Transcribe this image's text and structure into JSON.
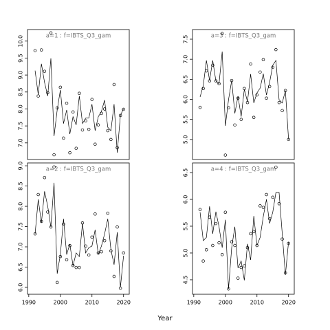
{
  "x_label": "Year",
  "chart_data": [
    {
      "type": "line",
      "title": "a=1  :  f=IBTS_Q3_gam",
      "x": [
        1992,
        1993,
        1994,
        1995,
        1996,
        1997,
        1998,
        1999,
        2000,
        2001,
        2002,
        2003,
        2004,
        2005,
        2006,
        2007,
        2008,
        2009,
        2010,
        2011,
        2012,
        2013,
        2014,
        2015,
        2016,
        2017,
        2018,
        2019,
        2020
      ],
      "series": [
        {
          "marker": "circle",
          "color": "#000000",
          "values": [
            9.72,
            8.38,
            9.74,
            9.11,
            8.48,
            10.24,
            6.65,
            8.03,
            8.64,
            7.14,
            8.17,
            6.71,
            7.91,
            6.84,
            8.46,
            7.38,
            7.65,
            7.4,
            8.28,
            6.96,
            7.53,
            7.87,
            8.0,
            7.36,
            7.1,
            8.72,
            6.86,
            7.81,
            7.99
          ]
        },
        {
          "marker": "none",
          "color": "#000000",
          "values": [
            9.13,
            8.42,
            9.33,
            8.78,
            8.38,
            9.49,
            7.2,
            7.97,
            8.56,
            7.57,
            7.97,
            7.26,
            7.77,
            7.53,
            8.38,
            7.57,
            7.73,
            7.73,
            8.14,
            7.36,
            7.77,
            7.93,
            8.26,
            7.46,
            7.36,
            8.14,
            6.71,
            7.81,
            8.01
          ]
        }
      ],
      "xlim": [
        1989.6,
        2021.8
      ],
      "ylim": [
        6.51,
        10.34
      ],
      "yticks": [
        {
          "value": 7,
          "label": "7.0"
        },
        {
          "value": 7.5,
          "label": "7.5"
        },
        {
          "value": 8,
          "label": "8.0"
        },
        {
          "value": 8.5,
          "label": "8.5"
        },
        {
          "value": 9,
          "label": "9.0"
        },
        {
          "value": 9.5,
          "label": "9.5"
        },
        {
          "value": 10,
          "label": "10.0"
        }
      ]
    },
    {
      "type": "line",
      "title": "a=3  :  f=IBTS_Q3_gam",
      "x": [
        1992,
        1993,
        1994,
        1995,
        1996,
        1997,
        1998,
        1999,
        2000,
        2001,
        2002,
        2003,
        2004,
        2005,
        2006,
        2007,
        2008,
        2009,
        2010,
        2011,
        2012,
        2013,
        2014,
        2015,
        2016,
        2017,
        2018,
        2019,
        2020
      ],
      "series": [
        {
          "marker": "circle",
          "color": "#000000",
          "values": [
            5.8,
            6.27,
            6.71,
            6.46,
            6.85,
            6.46,
            6.39,
            7.64,
            4.61,
            5.79,
            6.47,
            5.36,
            6.03,
            5.5,
            6.27,
            5.92,
            6.88,
            5.55,
            6.11,
            6.68,
            6.99,
            6.03,
            6.32,
            6.8,
            7.24,
            5.92,
            5.72,
            6.22,
            5.0
          ]
        },
        {
          "marker": "none",
          "color": "#000000",
          "values": [
            6.06,
            6.34,
            6.97,
            6.47,
            6.97,
            6.46,
            6.39,
            7.19,
            5.34,
            5.99,
            6.47,
            5.65,
            6.08,
            5.57,
            6.25,
            5.94,
            6.63,
            5.91,
            6.16,
            6.28,
            6.64,
            6.11,
            6.42,
            6.85,
            6.97,
            5.99,
            5.91,
            6.22,
            5.0
          ]
        }
      ],
      "xlim": [
        1989.6,
        2021.8
      ],
      "ylim": [
        4.5,
        7.74
      ],
      "yticks": [
        {
          "value": 5,
          "label": "5.0"
        },
        {
          "value": 5.5,
          "label": "5.5"
        },
        {
          "value": 6,
          "label": "6.0"
        },
        {
          "value": 6.5,
          "label": "6.5"
        },
        {
          "value": 7,
          "label": "7.0"
        },
        {
          "value": 7.5,
          "label": "7.5"
        }
      ]
    },
    {
      "type": "line",
      "title": "a=2  :  f=IBTS_Q3_gam",
      "x": [
        1992,
        1993,
        1994,
        1995,
        1996,
        1997,
        1998,
        1999,
        2000,
        2001,
        2002,
        2003,
        2004,
        2005,
        2006,
        2007,
        2008,
        2009,
        2010,
        2011,
        2012,
        2013,
        2014,
        2015,
        2016,
        2017,
        2018,
        2019,
        2020
      ],
      "series": [
        {
          "marker": "circle",
          "color": "#000000",
          "values": [
            7.32,
            8.29,
            7.63,
            8.71,
            7.86,
            7.49,
            8.97,
            6.12,
            6.76,
            7.56,
            6.68,
            7.03,
            6.54,
            6.49,
            6.49,
            7.59,
            7.02,
            6.8,
            7.24,
            7.81,
            6.85,
            6.88,
            7.15,
            7.83,
            6.9,
            6.27,
            7.49,
            5.98,
            6.85
          ]
        },
        {
          "marker": "none",
          "color": "#000000",
          "values": [
            7.32,
            8.17,
            7.59,
            8.37,
            8.0,
            7.49,
            8.58,
            6.34,
            6.81,
            7.69,
            6.81,
            7.07,
            6.53,
            6.85,
            6.76,
            7.58,
            6.85,
            6.98,
            7.02,
            7.42,
            6.81,
            7.02,
            7.32,
            7.69,
            6.93,
            6.56,
            7.36,
            6.0,
            6.78
          ]
        }
      ],
      "xlim": [
        1989.6,
        2021.8
      ],
      "ylim": [
        5.83,
        9.07
      ],
      "xticks": [
        1990,
        2000,
        2010,
        2020
      ],
      "yticks": [
        {
          "value": 6,
          "label": "6.0"
        },
        {
          "value": 6.5,
          "label": "6.5"
        },
        {
          "value": 7,
          "label": "7.0"
        },
        {
          "value": 7.5,
          "label": "7.5"
        },
        {
          "value": 8,
          "label": "8.0"
        },
        {
          "value": 8.5,
          "label": "8.5"
        },
        {
          "value": 9,
          "label": "9.0"
        }
      ]
    },
    {
      "type": "line",
      "title": "a=4  :  f=IBTS_Q3_gam",
      "x": [
        1992,
        1993,
        1994,
        1995,
        1996,
        1997,
        1998,
        1999,
        2000,
        2001,
        2002,
        2003,
        2004,
        2005,
        2006,
        2007,
        2008,
        2009,
        2010,
        2011,
        2012,
        2013,
        2014,
        2015,
        2016,
        2017,
        2018,
        2019,
        2020
      ],
      "series": [
        {
          "marker": "circle",
          "color": "#000000",
          "values": [
            5.81,
            4.85,
            5.06,
            5.67,
            5.14,
            5.55,
            5.19,
            4.97,
            5.76,
            4.33,
            5.21,
            5.14,
            4.53,
            4.73,
            4.76,
            5.1,
            5.36,
            5.4,
            5.14,
            5.88,
            5.85,
            6.09,
            5.64,
            6.04,
            6.6,
            5.92,
            5.26,
            4.63,
            5.18
          ]
        },
        {
          "marker": "none",
          "color": "#000000",
          "values": [
            5.76,
            5.23,
            5.29,
            5.87,
            5.36,
            5.77,
            5.49,
            5.1,
            5.62,
            4.33,
            5.1,
            5.49,
            4.72,
            4.85,
            4.49,
            5.17,
            4.87,
            5.69,
            5.14,
            5.29,
            5.68,
            6.0,
            5.55,
            5.76,
            6.13,
            6.13,
            5.36,
            4.59,
            5.21
          ]
        }
      ],
      "xlim": [
        1989.6,
        2021.8
      ],
      "ylim": [
        4.23,
        6.68
      ],
      "xticks": [
        1990,
        2000,
        2010,
        2020
      ],
      "yticks": [
        {
          "value": 4.5,
          "label": "4.5"
        },
        {
          "value": 5,
          "label": "5.0"
        },
        {
          "value": 5.5,
          "label": "5.5"
        },
        {
          "value": 6,
          "label": "6.0"
        },
        {
          "value": 6.5,
          "label": "6.5"
        }
      ]
    }
  ]
}
